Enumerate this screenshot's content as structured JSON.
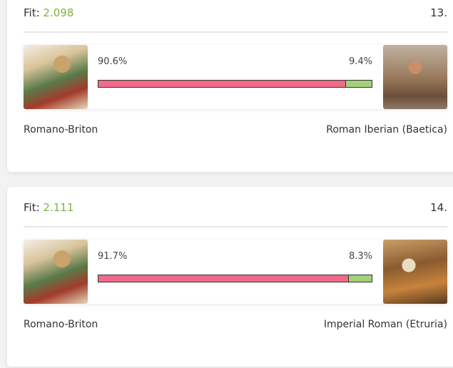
{
  "results": [
    {
      "fit_label": "Fit:",
      "fit_value": "2.098",
      "rank": "13.",
      "left": {
        "name": "Romano-Briton",
        "value": 90.6,
        "label": "90.6%"
      },
      "right": {
        "name": "Roman Iberian (Baetica)",
        "value": 9.4,
        "label": "9.4%"
      }
    },
    {
      "fit_label": "Fit:",
      "fit_value": "2.111",
      "rank": "14.",
      "left": {
        "name": "Romano-Briton",
        "value": 91.7,
        "label": "91.7%"
      },
      "right": {
        "name": "Imperial Roman (Etruria)",
        "value": 8.3,
        "label": "8.3%"
      }
    }
  ]
}
